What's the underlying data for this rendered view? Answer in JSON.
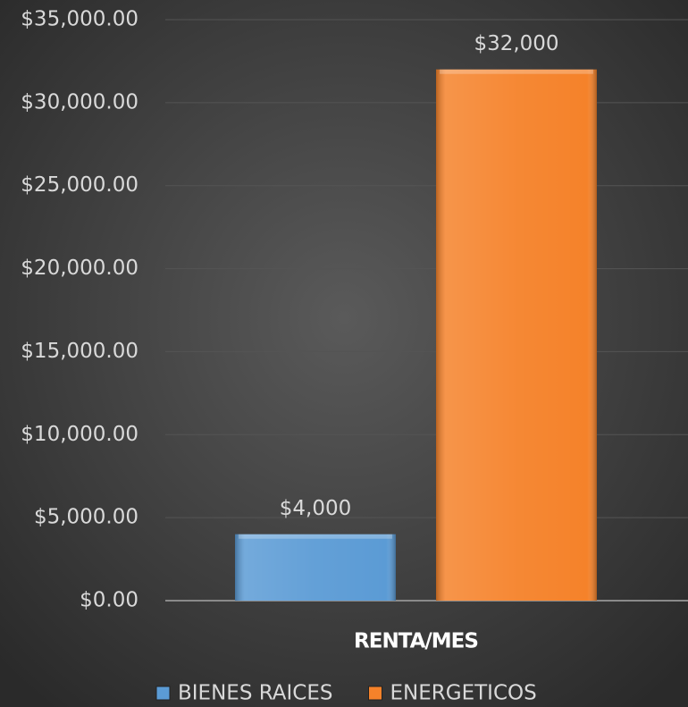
{
  "chart_data": {
    "type": "bar",
    "categories": [
      "RENTA/MES"
    ],
    "series": [
      {
        "name": "BIENES RAICES",
        "color": "#5b9bd5",
        "values": [
          4000
        ],
        "value_labels": [
          "$4,000"
        ]
      },
      {
        "name": "ENERGETICOS",
        "color": "#f5822a",
        "values": [
          32000
        ],
        "value_labels": [
          "$32,000"
        ]
      }
    ],
    "ylim": [
      0,
      35000
    ],
    "yticks": [
      {
        "value": 0,
        "label": "$0.00"
      },
      {
        "value": 5000,
        "label": "$5,000.00"
      },
      {
        "value": 10000,
        "label": "$10,000.00"
      },
      {
        "value": 15000,
        "label": "$15,000.00"
      },
      {
        "value": 20000,
        "label": "$20,000.00"
      },
      {
        "value": 25000,
        "label": "$25,000.00"
      },
      {
        "value": 30000,
        "label": "$30,000.00"
      },
      {
        "value": 35000,
        "label": "$35,000.00"
      }
    ],
    "grid": true,
    "legend": "bottom"
  }
}
